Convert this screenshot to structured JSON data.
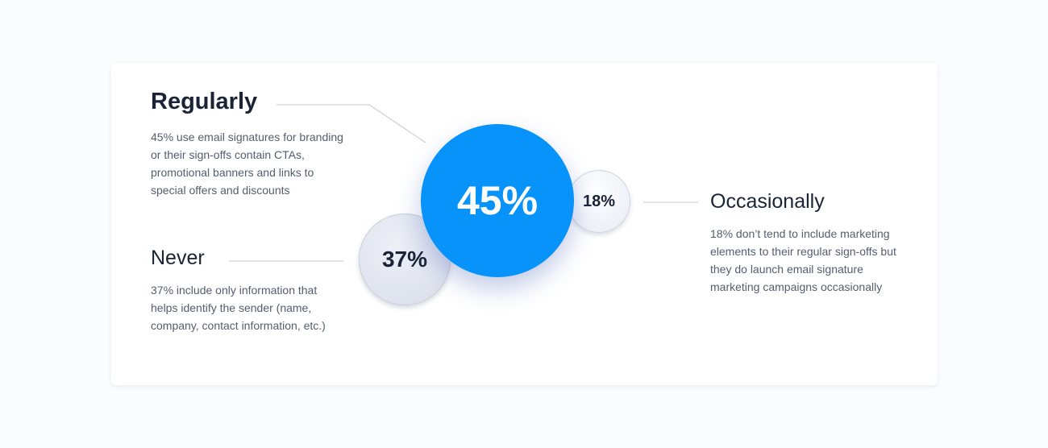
{
  "chart_data": {
    "type": "bubble",
    "categories": [
      "Regularly",
      "Never",
      "Occasionally"
    ],
    "values": [
      45,
      37,
      18
    ],
    "value_labels": [
      "45%",
      "37%",
      "18%"
    ],
    "colors": {
      "Regularly": "#0893fb",
      "Never": "#dfe3ee",
      "Occasionally": "#eef1f8"
    },
    "annotations": [
      {
        "category": "Regularly",
        "heading": "Regularly",
        "lines": [
          "45% use email signatures for branding",
          "or their sign-offs contain CTAs,",
          "promotional banners and links to",
          "special offers and discounts"
        ]
      },
      {
        "category": "Never",
        "heading": "Never",
        "lines": [
          "37% include only information that",
          "helps identify the sender (name,",
          "company, contact information, etc.)"
        ]
      },
      {
        "category": "Occasionally",
        "heading": "Occasionally",
        "lines": [
          "18% don’t tend to include marketing",
          "elements to their regular sign-offs but",
          "they do launch email signature",
          "marketing campaigns occasionally"
        ]
      }
    ]
  }
}
